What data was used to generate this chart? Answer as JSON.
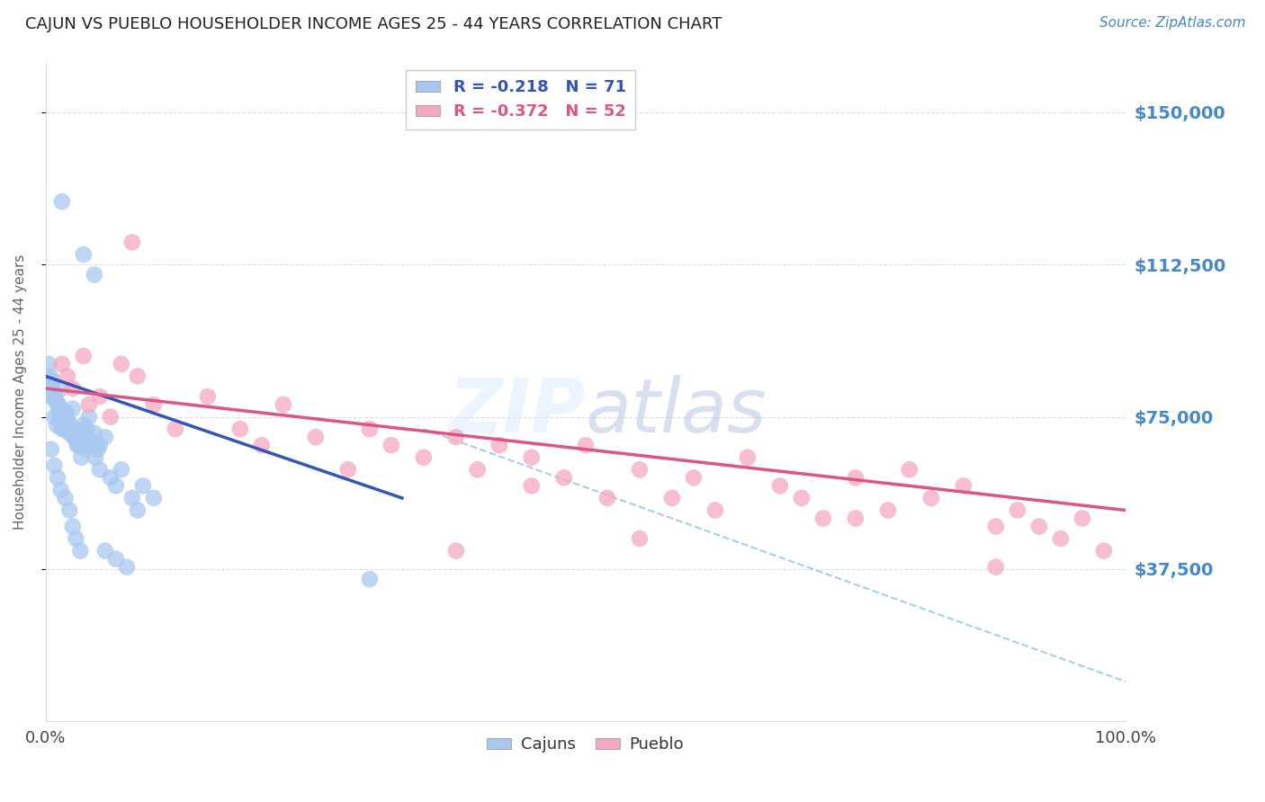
{
  "title": "CAJUN VS PUEBLO HOUSEHOLDER INCOME AGES 25 - 44 YEARS CORRELATION CHART",
  "source": "Source: ZipAtlas.com",
  "ylabel": "Householder Income Ages 25 - 44 years",
  "xlim": [
    0,
    1.0
  ],
  "ylim": [
    0,
    162500
  ],
  "ytick_positions": [
    37500,
    75000,
    112500,
    150000
  ],
  "ytick_labels": [
    "$37,500",
    "$75,000",
    "$112,500",
    "$150,000"
  ],
  "legend_r_cajun": "-0.218",
  "legend_n_cajun": "71",
  "legend_r_pueblo": "-0.372",
  "legend_n_pueblo": "52",
  "color_cajun": "#A8C8F0",
  "color_pueblo": "#F4A8C0",
  "color_line_cajun": "#3355BB",
  "color_line_pueblo": "#DD5588",
  "color_dashed": "#AACCEE",
  "color_title": "#222222",
  "color_source": "#4488CC",
  "color_ytick": "#4488CC",
  "color_xtick": "#444444",
  "background_color": "#FFFFFF",
  "cajun_x": [
    0.005,
    0.008,
    0.01,
    0.012,
    0.015,
    0.018,
    0.02,
    0.022,
    0.025,
    0.028,
    0.03,
    0.032,
    0.035,
    0.038,
    0.04,
    0.042,
    0.045,
    0.048,
    0.05,
    0.055,
    0.006,
    0.009,
    0.013,
    0.016,
    0.019,
    0.023,
    0.027,
    0.031,
    0.036,
    0.041,
    0.004,
    0.007,
    0.011,
    0.014,
    0.017,
    0.021,
    0.026,
    0.029,
    0.033,
    0.037,
    0.043,
    0.046,
    0.05,
    0.06,
    0.065,
    0.07,
    0.08,
    0.085,
    0.09,
    0.1,
    0.003,
    0.006,
    0.009,
    0.012,
    0.015,
    0.005,
    0.008,
    0.011,
    0.014,
    0.018,
    0.022,
    0.025,
    0.028,
    0.032,
    0.055,
    0.065,
    0.075,
    0.3,
    0.015,
    0.035,
    0.045
  ],
  "cajun_y": [
    80000,
    75000,
    73000,
    78000,
    82000,
    76000,
    74000,
    71000,
    77000,
    72000,
    70000,
    68000,
    73000,
    72000,
    75000,
    69000,
    71000,
    67000,
    68000,
    70000,
    83000,
    79000,
    77000,
    73000,
    76000,
    72000,
    70000,
    68000,
    71000,
    69000,
    85000,
    81000,
    78000,
    75000,
    72000,
    74000,
    70000,
    68000,
    65000,
    67000,
    68000,
    65000,
    62000,
    60000,
    58000,
    62000,
    55000,
    52000,
    58000,
    55000,
    88000,
    84000,
    80000,
    76000,
    72000,
    67000,
    63000,
    60000,
    57000,
    55000,
    52000,
    48000,
    45000,
    42000,
    42000,
    40000,
    38000,
    35000,
    128000,
    115000,
    110000
  ],
  "pueblo_x": [
    0.02,
    0.035,
    0.05,
    0.07,
    0.085,
    0.1,
    0.15,
    0.18,
    0.22,
    0.25,
    0.3,
    0.32,
    0.35,
    0.38,
    0.4,
    0.42,
    0.45,
    0.48,
    0.5,
    0.52,
    0.55,
    0.58,
    0.6,
    0.62,
    0.65,
    0.68,
    0.7,
    0.72,
    0.75,
    0.78,
    0.8,
    0.82,
    0.85,
    0.88,
    0.9,
    0.92,
    0.94,
    0.96,
    0.98,
    0.015,
    0.025,
    0.04,
    0.06,
    0.08,
    0.12,
    0.2,
    0.28,
    0.45,
    0.38,
    0.55,
    0.75,
    0.88
  ],
  "pueblo_y": [
    85000,
    90000,
    80000,
    88000,
    85000,
    78000,
    80000,
    72000,
    78000,
    70000,
    72000,
    68000,
    65000,
    70000,
    62000,
    68000,
    65000,
    60000,
    68000,
    55000,
    62000,
    55000,
    60000,
    52000,
    65000,
    58000,
    55000,
    50000,
    60000,
    52000,
    62000,
    55000,
    58000,
    48000,
    52000,
    48000,
    45000,
    50000,
    42000,
    88000,
    82000,
    78000,
    75000,
    118000,
    72000,
    68000,
    62000,
    58000,
    42000,
    45000,
    50000,
    38000
  ]
}
